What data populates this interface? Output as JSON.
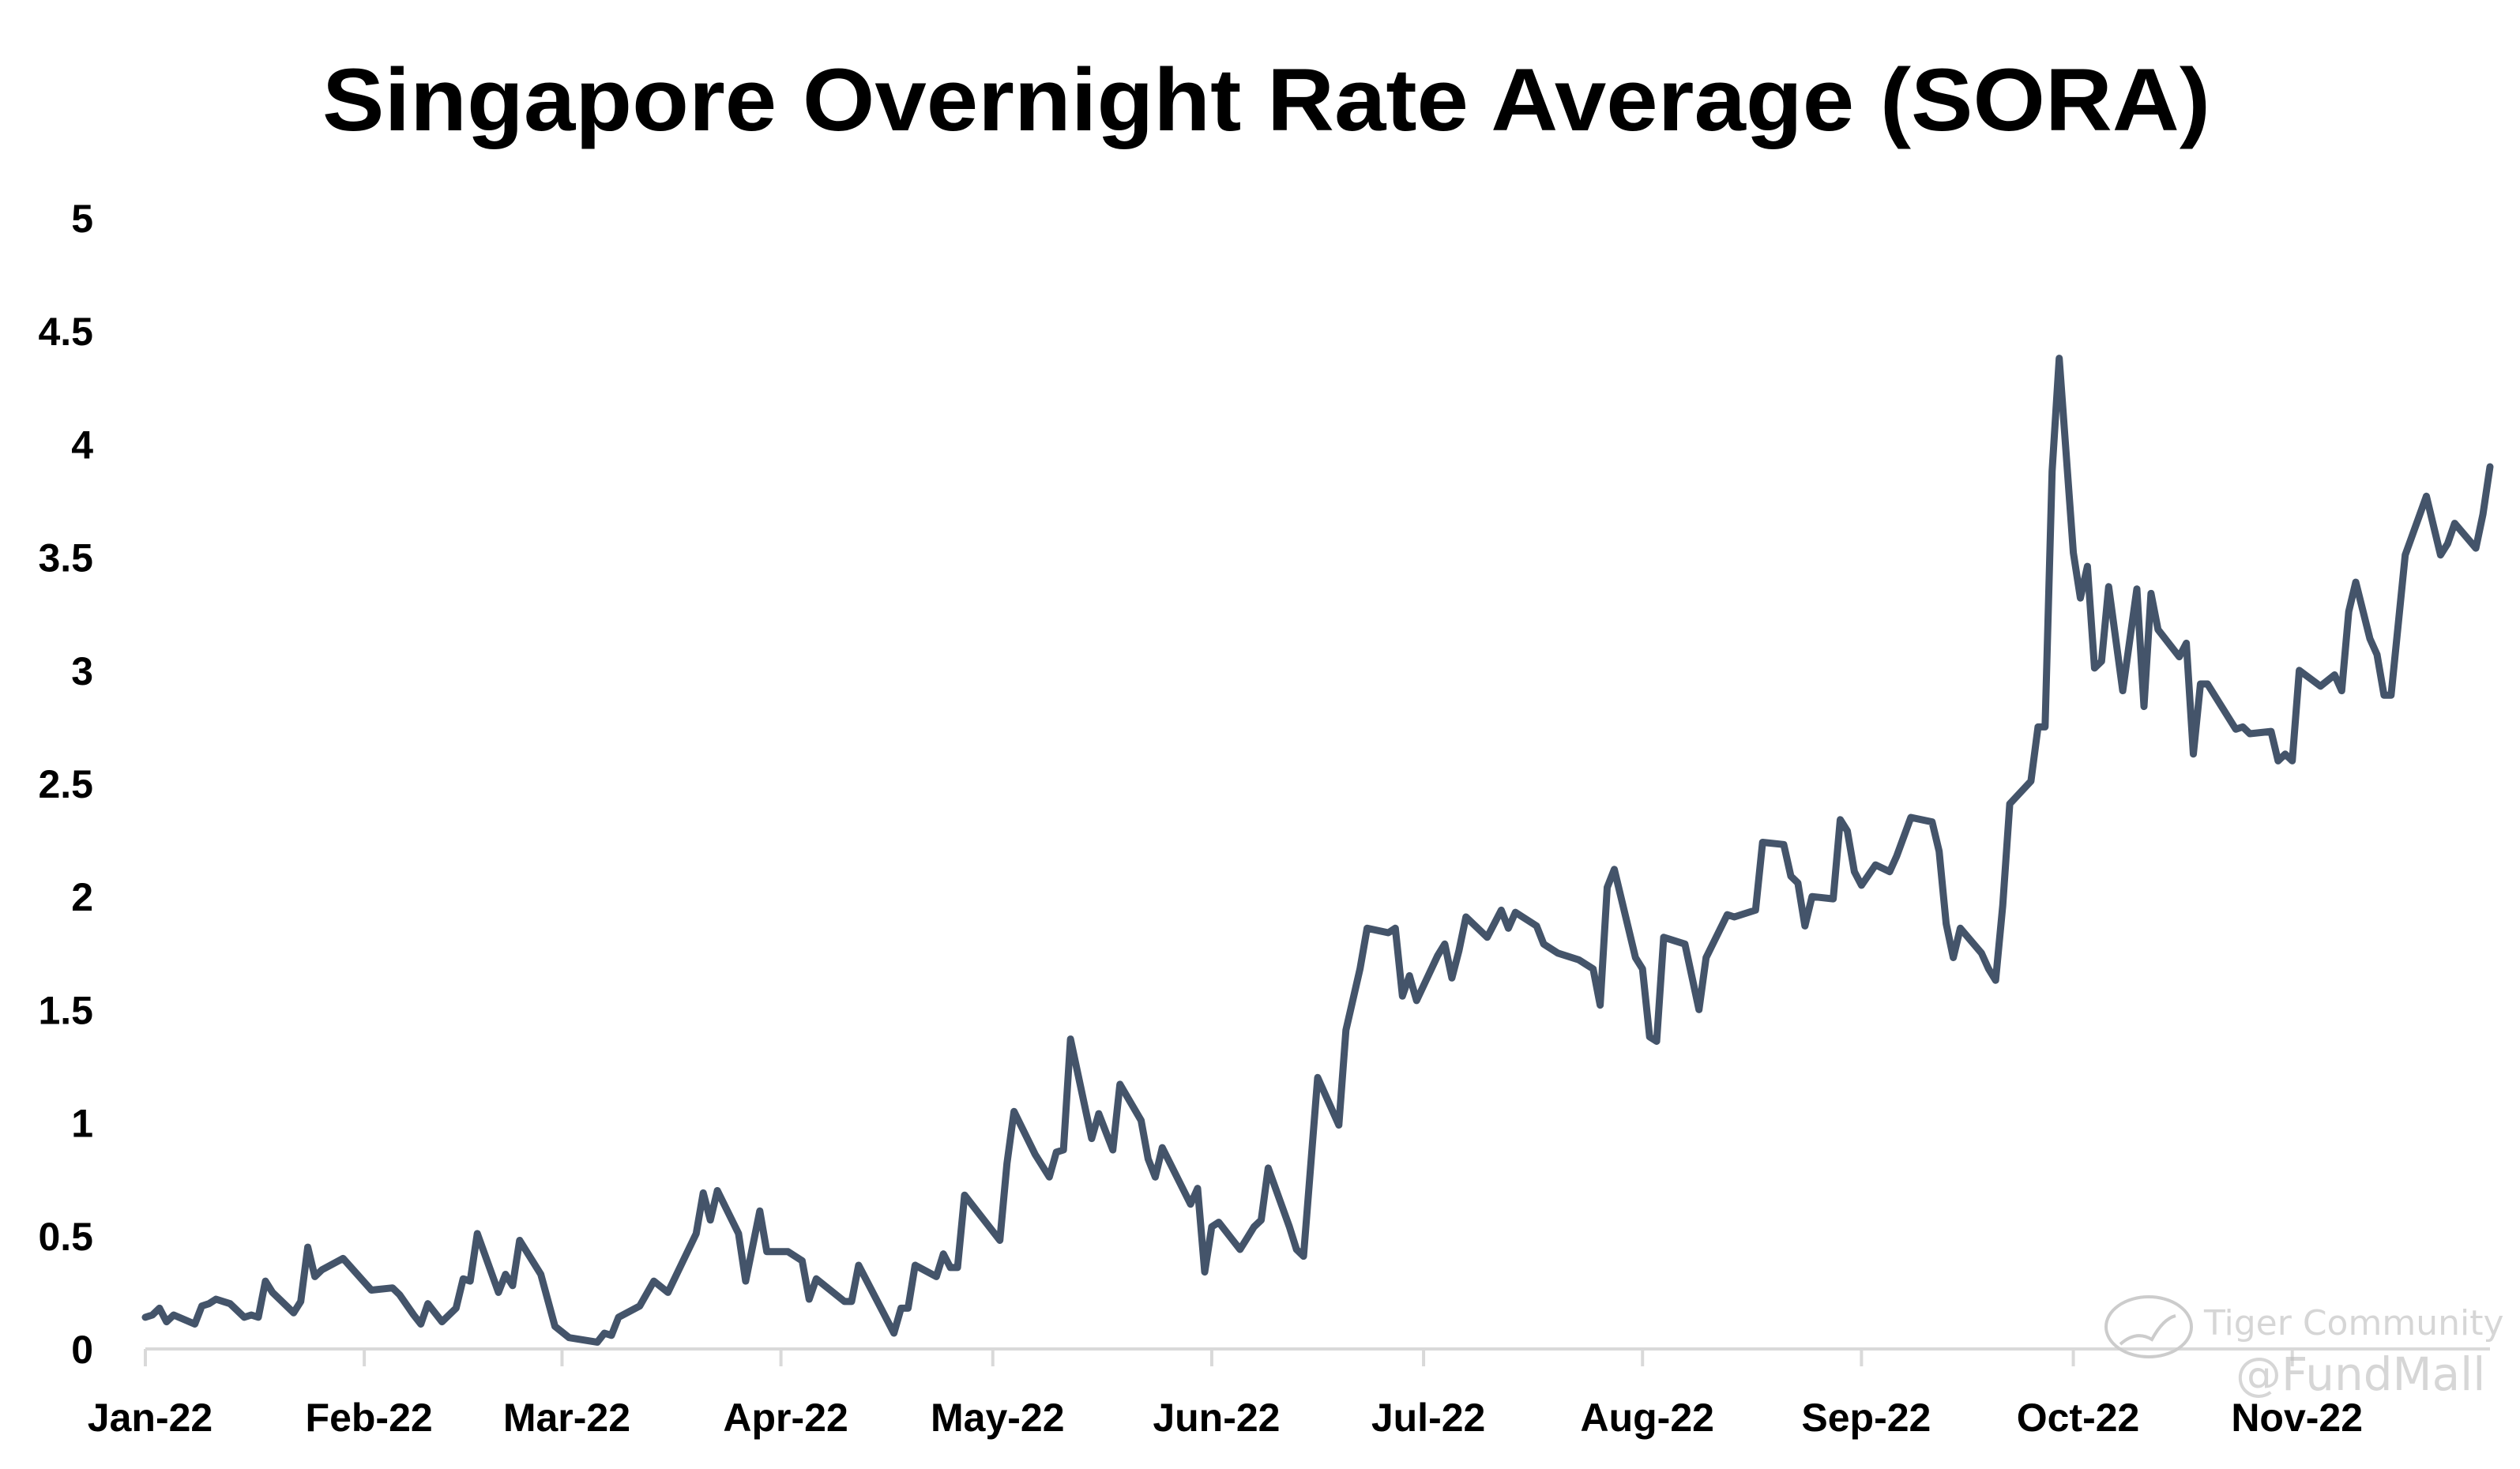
{
  "chart_data": {
    "type": "line",
    "title": "Singapore Overnight Rate Average (SORA)",
    "xlabel": "",
    "ylabel": "",
    "x_unit": "day of year 2022 (0 = 1 Jan)",
    "xlim": [
      0,
      332
    ],
    "ylim": [
      0,
      5
    ],
    "yticks": [
      "0",
      "0.5",
      "1",
      "1.5",
      "2",
      "2.5",
      "3",
      "3.5",
      "4",
      "4.5",
      "5"
    ],
    "xticks": [
      {
        "day": 0,
        "label": "Jan-22"
      },
      {
        "day": 31,
        "label": "Feb-22"
      },
      {
        "day": 59,
        "label": "Mar-22"
      },
      {
        "day": 90,
        "label": "Apr-22"
      },
      {
        "day": 120,
        "label": "May-22"
      },
      {
        "day": 151,
        "label": "Jun-22"
      },
      {
        "day": 181,
        "label": "Jul-22"
      },
      {
        "day": 212,
        "label": "Aug-22"
      },
      {
        "day": 243,
        "label": "Sep-22"
      },
      {
        "day": 273,
        "label": "Oct-22"
      },
      {
        "day": 304,
        "label": "Nov-22"
      }
    ],
    "grid": false,
    "legend": "none",
    "series": [
      {
        "name": "SORA",
        "color": "#44546a",
        "points": [
          [
            0,
            0.14
          ],
          [
            1,
            0.15
          ],
          [
            2,
            0.18
          ],
          [
            3,
            0.12
          ],
          [
            4,
            0.15
          ],
          [
            7,
            0.11
          ],
          [
            8,
            0.19
          ],
          [
            9,
            0.2
          ],
          [
            10,
            0.22
          ],
          [
            12,
            0.2
          ],
          [
            14,
            0.14
          ],
          [
            15,
            0.15
          ],
          [
            16,
            0.14
          ],
          [
            17,
            0.3
          ],
          [
            18,
            0.25
          ],
          [
            21,
            0.16
          ],
          [
            22,
            0.21
          ],
          [
            23,
            0.45
          ],
          [
            24,
            0.32
          ],
          [
            25,
            0.35
          ],
          [
            28,
            0.4
          ],
          [
            32,
            0.26
          ],
          [
            35,
            0.27
          ],
          [
            36,
            0.24
          ],
          [
            38,
            0.15
          ],
          [
            39,
            0.11
          ],
          [
            40,
            0.2
          ],
          [
            42,
            0.12
          ],
          [
            44,
            0.18
          ],
          [
            45,
            0.31
          ],
          [
            46,
            0.3
          ],
          [
            47,
            0.51
          ],
          [
            50,
            0.25
          ],
          [
            51,
            0.33
          ],
          [
            52,
            0.28
          ],
          [
            53,
            0.48
          ],
          [
            56,
            0.33
          ],
          [
            58,
            0.1
          ],
          [
            60,
            0.05
          ],
          [
            64,
            0.03
          ],
          [
            65,
            0.07
          ],
          [
            66,
            0.06
          ],
          [
            67,
            0.14
          ],
          [
            70,
            0.19
          ],
          [
            72,
            0.3
          ],
          [
            74,
            0.25
          ],
          [
            78,
            0.51
          ],
          [
            79,
            0.69
          ],
          [
            80,
            0.57
          ],
          [
            81,
            0.7
          ],
          [
            84,
            0.51
          ],
          [
            85,
            0.3
          ],
          [
            87,
            0.61
          ],
          [
            88,
            0.43
          ],
          [
            91,
            0.43
          ],
          [
            93,
            0.39
          ],
          [
            94,
            0.22
          ],
          [
            95,
            0.31
          ],
          [
            99,
            0.21
          ],
          [
            100,
            0.21
          ],
          [
            101,
            0.37
          ],
          [
            106,
            0.07
          ],
          [
            107,
            0.18
          ],
          [
            108,
            0.18
          ],
          [
            109,
            0.37
          ],
          [
            112,
            0.32
          ],
          [
            113,
            0.42
          ],
          [
            114,
            0.36
          ],
          [
            115,
            0.36
          ],
          [
            116,
            0.68
          ],
          [
            121,
            0.48
          ],
          [
            122,
            0.82
          ],
          [
            123,
            1.05
          ],
          [
            126,
            0.86
          ],
          [
            128,
            0.76
          ],
          [
            129,
            0.87
          ],
          [
            130,
            0.88
          ],
          [
            131,
            1.37
          ],
          [
            134,
            0.93
          ],
          [
            135,
            1.04
          ],
          [
            137,
            0.88
          ],
          [
            138,
            1.17
          ],
          [
            141,
            1.01
          ],
          [
            142,
            0.84
          ],
          [
            143,
            0.76
          ],
          [
            144,
            0.89
          ],
          [
            148,
            0.64
          ],
          [
            149,
            0.71
          ],
          [
            150,
            0.34
          ],
          [
            151,
            0.54
          ],
          [
            152,
            0.56
          ],
          [
            155,
            0.44
          ],
          [
            156,
            0.49
          ],
          [
            157,
            0.54
          ],
          [
            158,
            0.57
          ],
          [
            159,
            0.8
          ],
          [
            162,
            0.54
          ],
          [
            163,
            0.44
          ],
          [
            164,
            0.41
          ],
          [
            166,
            1.2
          ],
          [
            169,
            0.99
          ],
          [
            170,
            1.41
          ],
          [
            172,
            1.68
          ],
          [
            173,
            1.86
          ],
          [
            176,
            1.84
          ],
          [
            177,
            1.86
          ],
          [
            178,
            1.56
          ],
          [
            179,
            1.65
          ],
          [
            180,
            1.54
          ],
          [
            183,
            1.74
          ],
          [
            184,
            1.79
          ],
          [
            185,
            1.64
          ],
          [
            186,
            1.76
          ],
          [
            187,
            1.91
          ],
          [
            190,
            1.82
          ],
          [
            192,
            1.94
          ],
          [
            193,
            1.86
          ],
          [
            194,
            1.93
          ],
          [
            197,
            1.87
          ],
          [
            198,
            1.79
          ],
          [
            200,
            1.75
          ],
          [
            203,
            1.72
          ],
          [
            205,
            1.68
          ],
          [
            206,
            1.52
          ],
          [
            207,
            2.04
          ],
          [
            208,
            2.12
          ],
          [
            211,
            1.73
          ],
          [
            212,
            1.68
          ],
          [
            213,
            1.38
          ],
          [
            214,
            1.36
          ],
          [
            215,
            1.82
          ],
          [
            218,
            1.79
          ],
          [
            220,
            1.5
          ],
          [
            221,
            1.73
          ],
          [
            224,
            1.92
          ],
          [
            225,
            1.91
          ],
          [
            228,
            1.94
          ],
          [
            229,
            2.24
          ],
          [
            232,
            2.23
          ],
          [
            233,
            2.09
          ],
          [
            234,
            2.06
          ],
          [
            235,
            1.87
          ],
          [
            236,
            2.0
          ],
          [
            239,
            1.99
          ],
          [
            240,
            2.34
          ],
          [
            241,
            2.29
          ],
          [
            242,
            2.11
          ],
          [
            243,
            2.05
          ],
          [
            245,
            2.14
          ],
          [
            247,
            2.11
          ],
          [
            248,
            2.18
          ],
          [
            250,
            2.35
          ],
          [
            253,
            2.33
          ],
          [
            254,
            2.2
          ],
          [
            255,
            1.88
          ],
          [
            256,
            1.73
          ],
          [
            257,
            1.86
          ],
          [
            260,
            1.75
          ],
          [
            261,
            1.68
          ],
          [
            262,
            1.63
          ],
          [
            263,
            1.96
          ],
          [
            264,
            2.41
          ],
          [
            267,
            2.51
          ],
          [
            268,
            2.75
          ],
          [
            269,
            2.75
          ],
          [
            270,
            3.88
          ],
          [
            271,
            4.38
          ],
          [
            273,
            3.52
          ],
          [
            274,
            3.32
          ],
          [
            275,
            3.46
          ],
          [
            276,
            3.01
          ],
          [
            277,
            3.04
          ],
          [
            278,
            3.37
          ],
          [
            280,
            2.91
          ],
          [
            282,
            3.36
          ],
          [
            283,
            2.84
          ],
          [
            284,
            3.34
          ],
          [
            285,
            3.18
          ],
          [
            288,
            3.06
          ],
          [
            289,
            3.12
          ],
          [
            290,
            2.63
          ],
          [
            291,
            2.94
          ],
          [
            292,
            2.94
          ],
          [
            295,
            2.79
          ],
          [
            296,
            2.74
          ],
          [
            297,
            2.75
          ],
          [
            298,
            2.72
          ],
          [
            301,
            2.73
          ],
          [
            302,
            2.6
          ],
          [
            303,
            2.63
          ],
          [
            304,
            2.6
          ],
          [
            305,
            3.0
          ],
          [
            308,
            2.93
          ],
          [
            310,
            2.98
          ],
          [
            311,
            2.91
          ],
          [
            312,
            3.26
          ],
          [
            313,
            3.39
          ],
          [
            315,
            3.14
          ],
          [
            316,
            3.07
          ],
          [
            317,
            2.89
          ],
          [
            318,
            2.89
          ],
          [
            320,
            3.51
          ],
          [
            323,
            3.77
          ],
          [
            325,
            3.51
          ],
          [
            326,
            3.56
          ],
          [
            327,
            3.65
          ],
          [
            330,
            3.54
          ],
          [
            331,
            3.69
          ],
          [
            332,
            3.9
          ]
        ]
      }
    ]
  },
  "watermark": {
    "line1": "Tiger Community",
    "line2": "@FundMall"
  }
}
